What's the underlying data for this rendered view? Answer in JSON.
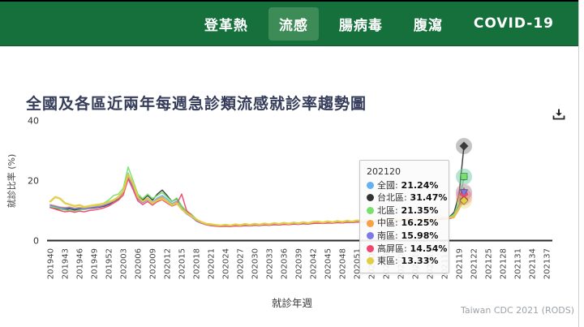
{
  "nav": {
    "tabs": [
      {
        "label": "登革熱",
        "active": false
      },
      {
        "label": "流感",
        "active": true
      },
      {
        "label": "腸病毒",
        "active": false
      },
      {
        "label": "腹瀉",
        "active": false
      },
      {
        "label": "COVID-19",
        "active": false
      }
    ]
  },
  "page": {
    "title": "全國及各區近兩年每週急診類流感就診率趨勢圖",
    "footer": "Taiwan CDC 2021 (RODS)"
  },
  "icons": {
    "download": "tray-arrow-down"
  },
  "colors": {
    "navbar": "#15703C",
    "nav_active_bg": "#3D8B57",
    "title_text": "#353C5A",
    "axis_line": "#2A2A2A"
  },
  "chart_data": {
    "type": "line",
    "title": "全國及各區近兩年每週急診類流感就診率趨勢圖",
    "xlabel": "就診年週",
    "ylabel": "就診比率 (%)",
    "ylim": [
      0,
      40
    ],
    "y_ticks": [
      0,
      20,
      40
    ],
    "grid": false,
    "legend_position": "none",
    "x_start": "201940",
    "x_end_data": "202120",
    "x_end_axis": "202137",
    "x_tick_step_weeks": 3,
    "x_tick_labels": [
      "201940",
      "201943",
      "201946",
      "201949",
      "201952",
      "202003",
      "202006",
      "202009",
      "202012",
      "202015",
      "202018",
      "202021",
      "202024",
      "202027",
      "202030",
      "202033",
      "202036",
      "202039",
      "202042",
      "202045",
      "202048",
      "202051",
      "202101",
      "202104",
      "202107",
      "202110",
      "202113",
      "202116",
      "202119",
      "202122",
      "202125",
      "202128",
      "202131",
      "202134",
      "202137"
    ],
    "tooltip": {
      "week": "202120",
      "rows": [
        {
          "name": "全國",
          "value": "21.24%",
          "color": "#64B0F0"
        },
        {
          "name": "台北區",
          "value": "31.47%",
          "color": "#333333"
        },
        {
          "name": "北區",
          "value": "21.35%",
          "color": "#77E06E"
        },
        {
          "name": "中區",
          "value": "16.25%",
          "color": "#F8A045"
        },
        {
          "name": "南區",
          "value": "15.98%",
          "color": "#7D7AE8"
        },
        {
          "name": "高屏區",
          "value": "14.54%",
          "color": "#EF476F"
        },
        {
          "name": "東區",
          "value": "13.33%",
          "color": "#E0CE44"
        }
      ]
    },
    "series": [
      {
        "name": "全國",
        "color": "#64B0F0",
        "symbol": "circle",
        "width": 1.5,
        "final": 21.24,
        "values": [
          11.5,
          11.2,
          10.8,
          10.6,
          10.9,
          10.4,
          10.7,
          10.5,
          10.8,
          11.0,
          11.2,
          11.6,
          12.2,
          13.5,
          14.5,
          16.5,
          22.5,
          18.5,
          14.5,
          13.2,
          14.2,
          12.8,
          14.2,
          15.0,
          13.8,
          12.3,
          13.2,
          10.8,
          9.2,
          8.2,
          6.8,
          6.0,
          5.5,
          5.2,
          5.0,
          4.9,
          5.0,
          4.9,
          5.1,
          5.0,
          5.2,
          5.1,
          5.3,
          5.2,
          5.4,
          5.3,
          5.5,
          5.4,
          5.6,
          5.5,
          5.7,
          5.6,
          5.8,
          5.7,
          5.9,
          6.0,
          5.9,
          6.1,
          6.0,
          6.2,
          6.1,
          6.3,
          6.2,
          6.4,
          6.3,
          6.5,
          6.4,
          6.6,
          6.5,
          6.7,
          6.6,
          6.8,
          6.7,
          6.9,
          7.0,
          6.9,
          7.1,
          7.0,
          7.2,
          7.1,
          7.3,
          7.4,
          7.6,
          8.5,
          12.5,
          21.24
        ]
      },
      {
        "name": "台北區",
        "color": "#3A3A3A",
        "symbol": "diamond",
        "width": 1.5,
        "final": 31.47,
        "values": [
          11.0,
          10.8,
          10.5,
          10.3,
          10.6,
          10.2,
          10.5,
          10.4,
          10.7,
          10.9,
          11.1,
          11.4,
          12.0,
          13.0,
          14.0,
          16.0,
          21.8,
          18.0,
          14.8,
          13.5,
          15.0,
          13.5,
          15.5,
          16.8,
          15.0,
          13.0,
          14.0,
          11.5,
          9.5,
          8.5,
          7.0,
          6.0,
          5.4,
          5.1,
          4.9,
          4.8,
          4.9,
          4.8,
          5.0,
          4.9,
          5.1,
          5.0,
          5.2,
          5.1,
          5.3,
          5.2,
          5.4,
          5.3,
          5.5,
          5.4,
          5.6,
          5.5,
          5.7,
          5.6,
          5.8,
          5.9,
          5.8,
          6.0,
          5.9,
          6.1,
          6.0,
          6.2,
          6.1,
          6.3,
          6.2,
          6.4,
          6.3,
          6.5,
          6.4,
          6.6,
          6.5,
          6.7,
          6.6,
          6.8,
          6.9,
          6.8,
          7.0,
          6.9,
          7.1,
          7.0,
          7.2,
          7.3,
          7.8,
          9.5,
          15.5,
          31.47
        ]
      },
      {
        "name": "北區",
        "color": "#77E06E",
        "symbol": "square",
        "width": 1.5,
        "final": 21.35,
        "values": [
          11.2,
          11.0,
          10.6,
          10.2,
          10.0,
          9.8,
          10.2,
          10.4,
          10.8,
          11.2,
          11.8,
          12.5,
          13.5,
          15.0,
          15.5,
          17.5,
          24.5,
          20.0,
          15.5,
          14.0,
          15.5,
          14.0,
          15.0,
          16.0,
          14.5,
          13.0,
          14.2,
          11.5,
          9.8,
          8.8,
          7.2,
          6.2,
          5.6,
          5.3,
          5.1,
          5.0,
          5.1,
          5.0,
          5.2,
          5.1,
          5.3,
          5.2,
          5.4,
          5.3,
          5.5,
          5.4,
          5.6,
          5.5,
          5.7,
          5.6,
          5.8,
          5.7,
          5.9,
          5.8,
          6.0,
          6.1,
          6.0,
          6.2,
          6.1,
          6.3,
          6.2,
          6.4,
          6.3,
          6.5,
          6.4,
          6.6,
          6.5,
          6.7,
          6.6,
          6.8,
          6.7,
          6.9,
          6.8,
          7.0,
          7.1,
          7.0,
          7.2,
          7.1,
          7.3,
          7.2,
          7.4,
          7.5,
          7.7,
          8.8,
          13.0,
          21.35
        ]
      },
      {
        "name": "中區",
        "color": "#F8A045",
        "symbol": "triangle-up",
        "width": 1.5,
        "final": 16.25,
        "values": [
          12.0,
          11.6,
          11.2,
          11.0,
          11.2,
          10.8,
          11.0,
          10.8,
          11.0,
          11.2,
          11.4,
          11.8,
          12.4,
          13.2,
          14.2,
          16.0,
          21.5,
          18.0,
          14.0,
          12.8,
          13.8,
          12.5,
          13.8,
          14.5,
          13.2,
          12.0,
          12.8,
          10.5,
          9.0,
          8.0,
          6.6,
          5.9,
          5.4,
          5.1,
          5.0,
          4.8,
          4.9,
          4.8,
          5.0,
          4.9,
          5.1,
          5.0,
          5.2,
          5.1,
          5.3,
          5.2,
          5.4,
          5.3,
          5.6,
          5.5,
          5.7,
          5.6,
          5.8,
          5.6,
          5.8,
          5.9,
          5.8,
          6.0,
          5.9,
          6.1,
          6.0,
          6.2,
          6.1,
          6.3,
          6.2,
          6.4,
          6.3,
          6.5,
          6.4,
          6.6,
          6.5,
          6.7,
          6.6,
          6.8,
          6.9,
          6.8,
          7.0,
          6.9,
          7.1,
          7.0,
          7.2,
          7.3,
          7.5,
          8.2,
          11.8,
          16.25
        ]
      },
      {
        "name": "南區",
        "color": "#7D7AE8",
        "symbol": "triangle-down",
        "width": 1.5,
        "final": 15.98,
        "values": [
          11.8,
          11.4,
          11.0,
          10.8,
          11.0,
          10.6,
          10.8,
          10.6,
          10.9,
          11.1,
          11.3,
          11.7,
          12.3,
          13.3,
          14.3,
          16.2,
          21.2,
          17.8,
          13.8,
          12.6,
          13.6,
          12.4,
          13.6,
          14.2,
          13.0,
          11.8,
          12.6,
          10.4,
          8.9,
          7.9,
          6.5,
          5.8,
          5.3,
          5.0,
          4.9,
          4.7,
          4.8,
          4.7,
          4.9,
          4.8,
          5.0,
          4.9,
          5.1,
          5.0,
          5.2,
          5.1,
          5.3,
          5.2,
          5.4,
          5.3,
          5.5,
          5.4,
          5.6,
          5.5,
          5.7,
          5.8,
          5.7,
          5.9,
          5.8,
          6.0,
          5.9,
          6.1,
          6.0,
          6.2,
          6.1,
          6.3,
          6.2,
          6.4,
          6.3,
          6.5,
          6.4,
          6.6,
          6.5,
          6.7,
          6.8,
          6.7,
          6.9,
          6.8,
          7.0,
          6.9,
          7.1,
          7.2,
          7.4,
          8.0,
          11.5,
          15.98
        ]
      },
      {
        "name": "高屏區",
        "color": "#EF476F",
        "symbol": "x",
        "width": 1.5,
        "final": 14.54,
        "values": [
          11.0,
          10.5,
          10.0,
          9.6,
          9.8,
          9.4,
          9.8,
          9.6,
          10.0,
          10.2,
          10.5,
          10.9,
          11.5,
          12.5,
          13.5,
          15.2,
          20.5,
          17.0,
          13.2,
          12.0,
          13.0,
          11.8,
          13.0,
          13.6,
          12.5,
          11.5,
          12.2,
          15.5,
          10.0,
          8.5,
          6.8,
          5.9,
          5.3,
          5.0,
          4.8,
          4.7,
          4.8,
          4.7,
          4.9,
          4.8,
          5.0,
          4.9,
          5.1,
          5.0,
          5.2,
          5.1,
          5.3,
          5.2,
          5.4,
          5.3,
          5.5,
          5.4,
          5.6,
          5.5,
          5.7,
          5.8,
          5.7,
          5.9,
          5.8,
          6.0,
          5.9,
          6.1,
          6.0,
          6.2,
          6.1,
          6.3,
          6.2,
          6.4,
          6.3,
          6.5,
          6.4,
          6.6,
          6.5,
          6.7,
          6.8,
          6.7,
          6.9,
          6.8,
          7.0,
          6.9,
          7.1,
          7.2,
          7.3,
          7.8,
          10.5,
          14.54
        ]
      },
      {
        "name": "東區",
        "color": "#E0CE44",
        "symbol": "diamond",
        "width": 2.4,
        "final": 13.33,
        "values": [
          13.0,
          14.5,
          14.0,
          12.5,
          12.0,
          11.5,
          11.8,
          11.2,
          11.5,
          11.8,
          12.0,
          12.3,
          12.8,
          13.5,
          14.5,
          16.5,
          22.0,
          19.0,
          14.5,
          13.0,
          14.0,
          12.5,
          13.5,
          14.0,
          13.0,
          11.8,
          12.5,
          10.5,
          9.2,
          8.2,
          7.0,
          6.2,
          5.6,
          5.4,
          5.2,
          5.0,
          5.3,
          5.0,
          5.4,
          5.1,
          5.5,
          5.2,
          5.6,
          5.3,
          5.7,
          5.4,
          5.8,
          5.5,
          5.9,
          5.6,
          6.0,
          5.7,
          6.1,
          5.8,
          6.2,
          6.3,
          6.0,
          6.4,
          6.1,
          6.5,
          6.2,
          6.6,
          6.3,
          6.7,
          6.4,
          6.8,
          6.5,
          6.9,
          6.6,
          7.0,
          6.7,
          7.1,
          6.8,
          7.2,
          7.3,
          7.0,
          7.4,
          7.1,
          7.5,
          7.2,
          7.6,
          7.7,
          7.6,
          8.0,
          10.8,
          13.33
        ]
      }
    ]
  }
}
